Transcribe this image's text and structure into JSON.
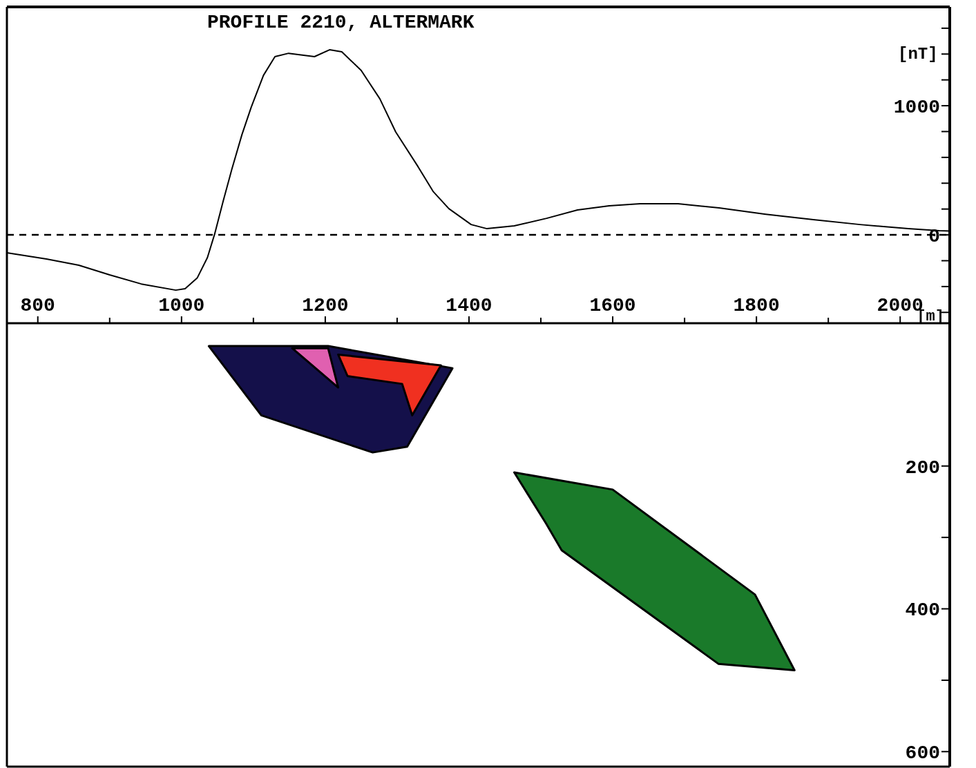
{
  "chart_data": [
    {
      "type": "line",
      "title": "PROFILE 2210, ALTERMARK",
      "xlabel": "[m]",
      "ylabel": "[nT]",
      "xlim": [
        757,
        2069
      ],
      "ylim": [
        -684,
        1765
      ],
      "xticks": [
        800,
        {
          "value": 900,
          "label": null
        },
        1000,
        {
          "value": 1100,
          "label": null
        },
        1200,
        {
          "value": 1300,
          "label": null
        },
        1400,
        {
          "value": 1500,
          "label": null
        },
        1600,
        {
          "value": 1700,
          "label": null
        },
        1800,
        {
          "value": 1900,
          "label": null
        },
        2000
      ],
      "yticks": [
        {
          "value": -600,
          "label": null
        },
        {
          "value": -400,
          "label": null
        },
        {
          "value": -200,
          "label": null
        },
        0,
        {
          "value": 200,
          "label": null
        },
        {
          "value": 400,
          "label": null
        },
        {
          "value": 600,
          "label": null
        },
        {
          "value": 800,
          "label": null
        },
        1000,
        {
          "value": 1200,
          "label": null
        },
        {
          "value": 1400,
          "label": null
        },
        {
          "value": 1600,
          "label": null
        }
      ],
      "ref_lines": [
        {
          "axis": "y",
          "value": 0,
          "line_style": "dashed",
          "color": "#000000"
        }
      ],
      "series": [
        {
          "color": "#000000",
          "x": [
            757,
            812,
            857,
            900,
            944,
            992,
            1005,
            1022,
            1036,
            1046,
            1058,
            1070,
            1084,
            1097,
            1114,
            1130,
            1149,
            1185,
            1206,
            1223,
            1250,
            1276,
            1298,
            1329,
            1350,
            1372,
            1403,
            1425,
            1463,
            1508,
            1551,
            1595,
            1638,
            1691,
            1748,
            1813,
            1879,
            1944,
            2011,
            2054,
            2069
          ],
          "values": [
            -139,
            -187,
            -235,
            -310,
            -380,
            -428,
            -417,
            -332,
            -176,
            5,
            262,
            508,
            775,
            989,
            1235,
            1380,
            1406,
            1380,
            1433,
            1417,
            1273,
            1053,
            797,
            529,
            337,
            203,
            80,
            48,
            70,
            128,
            193,
            225,
            241,
            241,
            209,
            160,
            118,
            80,
            48,
            32,
            30
          ]
        }
      ]
    },
    {
      "type": "area",
      "xlim": [
        757,
        2069
      ],
      "ylim": [
        621,
        0
      ],
      "tick_labels": "y",
      "yticks": [
        200,
        {
          "value": 300,
          "label": null
        },
        400,
        {
          "value": 500,
          "label": null
        },
        600
      ],
      "series": [
        {
          "color": "#14104a",
          "x": [
            1038,
            1204,
            1377,
            1314,
            1266,
            1111,
            1038
          ],
          "values": [
            32,
            32,
            63,
            173,
            181,
            129,
            32
          ]
        },
        {
          "color": "#e060b0",
          "x": [
            1154,
            1204,
            1218,
            1154
          ],
          "values": [
            35,
            35,
            90,
            35
          ]
        },
        {
          "color": "#f03020",
          "x": [
            1218,
            1361,
            1321,
            1307,
            1231,
            1218
          ],
          "values": [
            44,
            59,
            129,
            85,
            74,
            44
          ]
        },
        {
          "color": "#1a7a2a",
          "x": [
            1463,
            1600,
            1798,
            1853,
            1747,
            1529,
            1507,
            1463
          ],
          "values": [
            209,
            233,
            380,
            486,
            477,
            318,
            280,
            209
          ]
        }
      ]
    }
  ]
}
